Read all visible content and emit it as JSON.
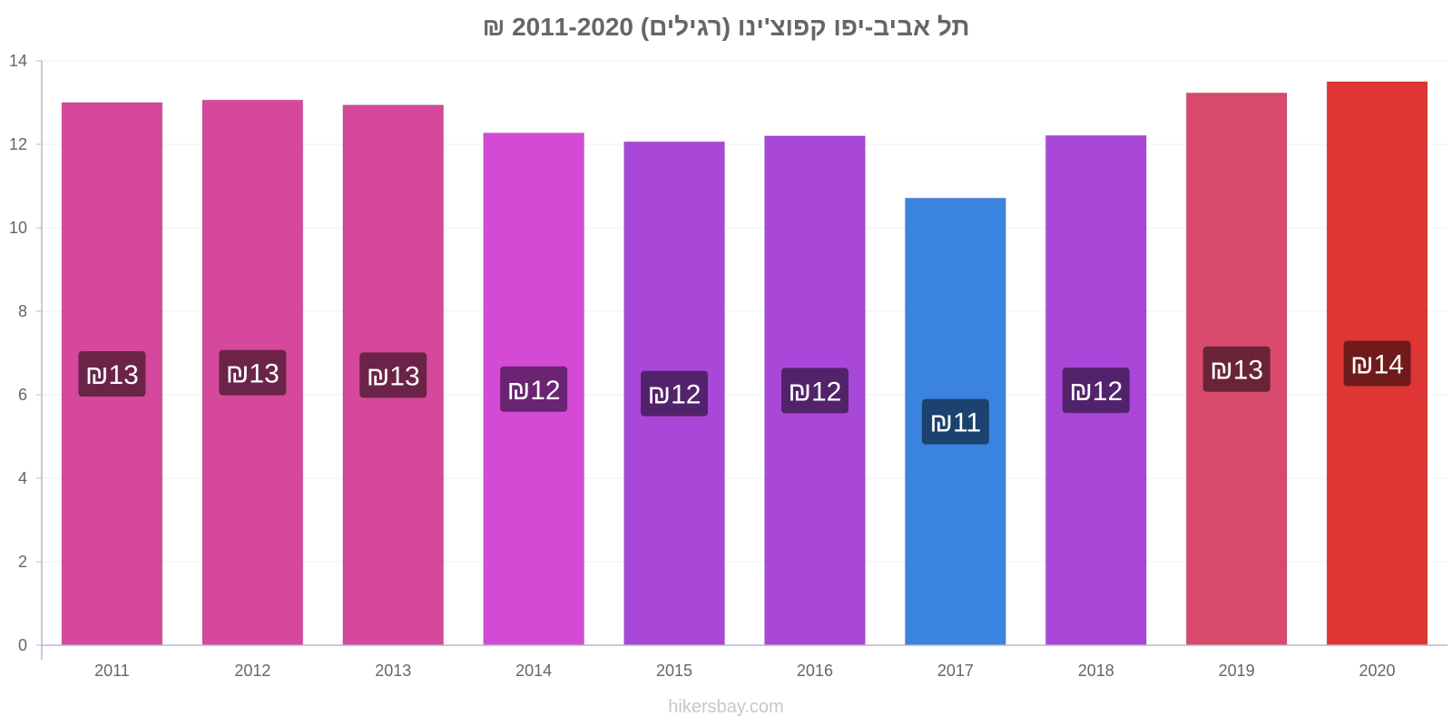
{
  "chart_data": {
    "type": "bar",
    "title": "תל אביב-יפו קפוצ'ינו (רגילים) 2011-2020 ₪",
    "xlabel": "",
    "ylabel": "",
    "categories": [
      "2011",
      "2012",
      "2013",
      "2014",
      "2015",
      "2016",
      "2017",
      "2018",
      "2019",
      "2020"
    ],
    "values": [
      13.0,
      13.06,
      12.94,
      12.27,
      12.06,
      12.2,
      10.71,
      12.21,
      13.23,
      13.5
    ],
    "data_labels": [
      "₪13",
      "₪13",
      "₪13",
      "₪12",
      "₪12",
      "₪12",
      "₪11",
      "₪12",
      "₪13",
      "₪14"
    ],
    "bar_colors": [
      "#d6489b",
      "#d6489b",
      "#d6489b",
      "#d44ad4",
      "#a947d9",
      "#a947d9",
      "#3a84e0",
      "#a947d9",
      "#d84a6b",
      "#e03535"
    ],
    "label_colors": [
      "#6b2447",
      "#6b2447",
      "#6b2447",
      "#6a2472",
      "#52236b",
      "#52236b",
      "#1c4270",
      "#52236b",
      "#6b2437",
      "#701b1b"
    ],
    "ylim": [
      0,
      14
    ],
    "yticks": [
      0,
      2,
      4,
      6,
      8,
      10,
      12,
      14
    ],
    "grid": true,
    "legend": "none"
  },
  "watermark": "hikersbay.com"
}
